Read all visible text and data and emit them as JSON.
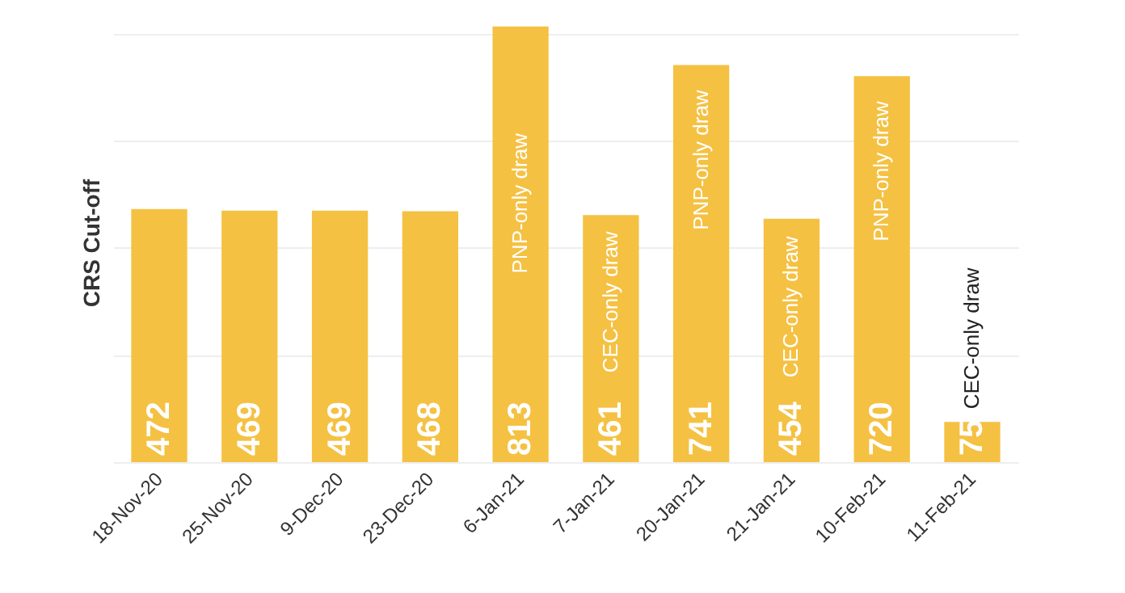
{
  "chart_data": {
    "type": "bar",
    "ylabel": "CRS Cut-off",
    "categories": [
      "18-Nov-20",
      "25-Nov-20",
      "9-Dec-20",
      "23-Dec-20",
      "6-Jan-21",
      "7-Jan-21",
      "20-Jan-21",
      "21-Jan-21",
      "10-Feb-21",
      "11-Feb-21"
    ],
    "values": [
      472,
      469,
      469,
      468,
      813,
      461,
      741,
      454,
      720,
      75
    ],
    "color": "#f5c143",
    "ylim": [
      0,
      820
    ],
    "yticks": [
      {
        "value": 0,
        "label": null
      },
      {
        "value": 200,
        "label": null
      },
      {
        "value": 400,
        "label": null
      },
      {
        "value": 600,
        "label": null
      },
      {
        "value": 800,
        "label": null
      }
    ],
    "grid": "y",
    "tick_labels": "x",
    "data_labels": true,
    "annotations": [
      {
        "text": "PNP-only draw",
        "x": "6-Jan-21",
        "y": 352
      },
      {
        "text": "CEC-only draw",
        "x": "7-Jan-21",
        "y": 167
      },
      {
        "text": "PNP-only draw",
        "x": "20-Jan-21",
        "y": 433
      },
      {
        "text": "CEC-only draw",
        "x": "21-Jan-21",
        "y": 158
      },
      {
        "text": "PNP-only draw",
        "x": "10-Feb-21",
        "y": 412
      },
      {
        "text": "CEC-only draw",
        "x": "11-Feb-21",
        "y": 75
      }
    ]
  }
}
